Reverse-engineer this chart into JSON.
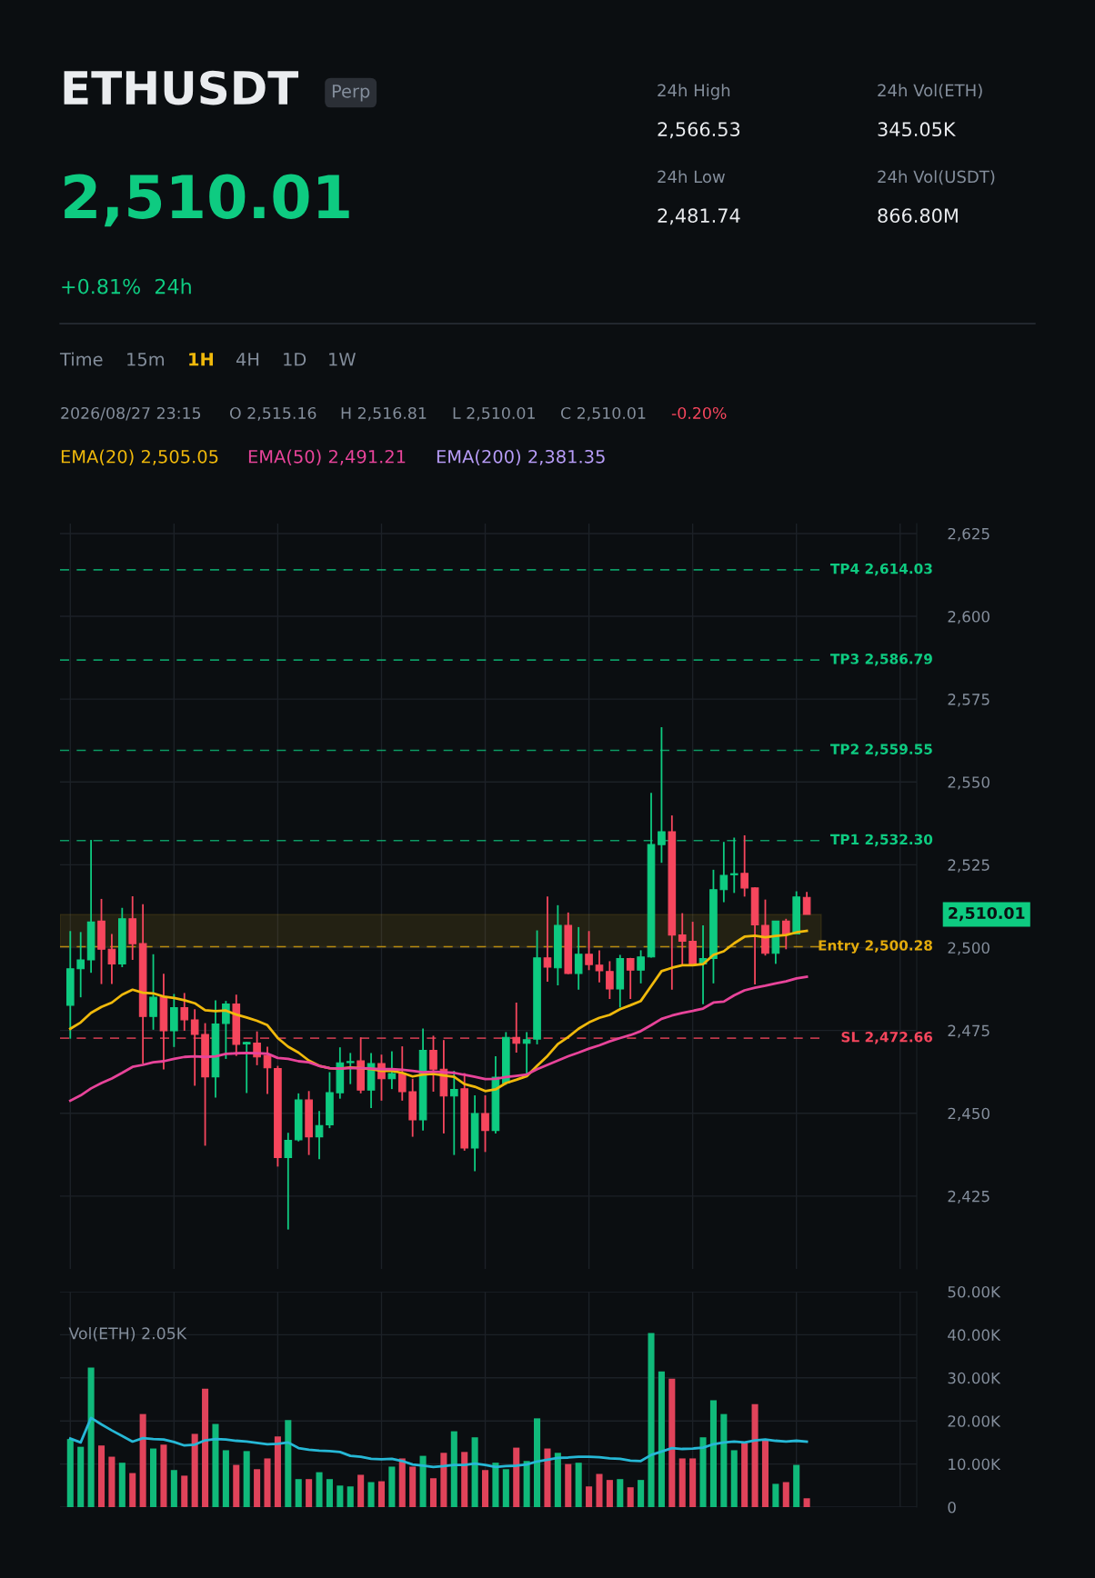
{
  "chart_data": [
    {
      "type": "candlestick",
      "title": "ETHUSDT",
      "subtitle": "2,510.01",
      "annotations": [
        "Perp",
        "+0.81%  24h",
        "24h High",
        "2,566.53",
        "24h Vol(ETH)",
        "345.05K",
        "24h Low",
        "2,481.74",
        "24h Vol(USDT)",
        "866.80M",
        "Time",
        "15m",
        "1H",
        "4H",
        "1D",
        "1W",
        "2026/08/27 23:15",
        "O 2,515.16",
        "H 2,516.81",
        "L 2,510.01",
        "C 2,510.01",
        "-0.20%",
        "EMA(200) 2,381.35",
        "2,510.01"
      ],
      "categories": [
        null,
        null,
        null,
        null,
        null,
        null,
        null,
        null,
        null,
        null,
        null,
        null,
        null,
        null,
        null,
        null,
        null,
        null,
        null,
        null,
        null,
        null,
        null,
        null,
        null,
        null,
        null,
        null,
        null,
        null,
        null,
        null,
        null,
        null,
        null,
        null,
        null,
        null,
        null,
        null,
        null,
        null,
        null,
        null,
        null,
        null,
        null,
        null,
        null,
        null,
        null,
        null,
        null,
        null,
        null,
        null,
        null,
        null,
        null,
        null,
        null,
        null,
        null,
        null,
        null,
        null,
        null,
        null,
        null,
        null,
        null,
        null
      ],
      "ohlc": [
        [
          2482.6,
          2505.0,
          2472.5,
          2493.6
        ],
        [
          2493.6,
          2504.7,
          2485.0,
          2496.3
        ],
        [
          2496.3,
          2532.5,
          2492.4,
          2507.7
        ],
        [
          2508.0,
          2514.7,
          2489.0,
          2499.5
        ],
        [
          2499.5,
          2504.1,
          2489.0,
          2495.1
        ],
        [
          2495.1,
          2512.0,
          2494.1,
          2508.7
        ],
        [
          2508.7,
          2515.5,
          2496.3,
          2501.2
        ],
        [
          2501.2,
          2513.1,
          2464.9,
          2479.2
        ],
        [
          2479.2,
          2498.0,
          2475.2,
          2485.0
        ],
        [
          2485.0,
          2492.1,
          2463.2,
          2474.9
        ],
        [
          2474.9,
          2486.0,
          2470.0,
          2481.9
        ],
        [
          2481.9,
          2486.3,
          2474.9,
          2478.2
        ],
        [
          2478.2,
          2481.4,
          2458.3,
          2473.8
        ],
        [
          2473.8,
          2477.2,
          2440.2,
          2461.0
        ],
        [
          2461.0,
          2484.1,
          2454.7,
          2476.9
        ],
        [
          2477.1,
          2483.9,
          2466.4,
          2483.0
        ],
        [
          2483.0,
          2485.8,
          2467.3,
          2470.8
        ],
        [
          2470.9,
          2471.6,
          2456.1,
          2471.4
        ],
        [
          2471.2,
          2474.7,
          2464.5,
          2467.0
        ],
        [
          2467.5,
          2470.1,
          2455.8,
          2463.7
        ],
        [
          2463.5,
          2464.3,
          2433.9,
          2436.6
        ],
        [
          2436.6,
          2444.1,
          2414.9,
          2441.8
        ],
        [
          2442.0,
          2456.0,
          2441.5,
          2454.0
        ],
        [
          2454.0,
          2456.7,
          2437.4,
          2442.9
        ],
        [
          2442.9,
          2450.7,
          2436.1,
          2446.3
        ],
        [
          2446.5,
          2462.4,
          2445.5,
          2456.2
        ],
        [
          2456.2,
          2469.9,
          2454.4,
          2465.2
        ],
        [
          2465.3,
          2468.2,
          2458.8,
          2465.6
        ],
        [
          2465.8,
          2472.9,
          2456.0,
          2457.0
        ],
        [
          2457.0,
          2468.2,
          2451.6,
          2465.0
        ],
        [
          2465.0,
          2467.7,
          2453.8,
          2460.4
        ],
        [
          2460.4,
          2468.7,
          2457.3,
          2462.0
        ],
        [
          2462.0,
          2470.2,
          2453.8,
          2456.5
        ],
        [
          2456.5,
          2460.4,
          2442.9,
          2448.0
        ],
        [
          2448.0,
          2475.6,
          2444.8,
          2469.0
        ],
        [
          2469.0,
          2473.4,
          2456.5,
          2463.3
        ],
        [
          2463.3,
          2472.1,
          2443.9,
          2455.2
        ],
        [
          2455.2,
          2462.8,
          2437.4,
          2457.2
        ],
        [
          2457.4,
          2462.1,
          2438.7,
          2439.5
        ],
        [
          2439.5,
          2455.4,
          2432.5,
          2449.9
        ],
        [
          2449.9,
          2455.4,
          2438.3,
          2444.8
        ],
        [
          2444.8,
          2467.2,
          2443.9,
          2460.9
        ],
        [
          2459.1,
          2474.5,
          2458.6,
          2472.9
        ],
        [
          2472.9,
          2483.4,
          2468.3,
          2471.1
        ],
        [
          2471.1,
          2474.5,
          2461.7,
          2472.2
        ],
        [
          2472.4,
          2505.2,
          2470.8,
          2496.9
        ],
        [
          2496.9,
          2515.4,
          2489.7,
          2494.1
        ],
        [
          2493.9,
          2512.8,
          2488.6,
          2506.7
        ],
        [
          2506.7,
          2510.6,
          2492.0,
          2492.2
        ],
        [
          2492.2,
          2506.2,
          2487.3,
          2498.0
        ],
        [
          2498.0,
          2505.0,
          2493.2,
          2494.9
        ],
        [
          2494.7,
          2499.2,
          2489.5,
          2493.0
        ],
        [
          2492.8,
          2495.9,
          2484.5,
          2487.5
        ],
        [
          2487.5,
          2497.8,
          2481.9,
          2496.7
        ],
        [
          2496.7,
          2496.9,
          2484.5,
          2493.2
        ],
        [
          2493.2,
          2499.2,
          2489.2,
          2497.2
        ],
        [
          2497.2,
          2546.7,
          2497.0,
          2531.1
        ],
        [
          2531.1,
          2566.53,
          2525.6,
          2535.0
        ],
        [
          2535.0,
          2539.9,
          2487.3,
          2503.8
        ],
        [
          2503.8,
          2510.4,
          2494.6,
          2501.9
        ],
        [
          2501.9,
          2507.8,
          2494.4,
          2495.1
        ],
        [
          2495.1,
          2506.7,
          2482.9,
          2496.7
        ],
        [
          2496.7,
          2523.5,
          2489.2,
          2517.5
        ],
        [
          2517.5,
          2531.9,
          2513.7,
          2521.8
        ],
        [
          2522.0,
          2533.2,
          2516.5,
          2522.3
        ],
        [
          2522.4,
          2533.9,
          2515.4,
          2518.0
        ],
        [
          2518.0,
          2518.2,
          2488.9,
          2506.9
        ],
        [
          2506.7,
          2514.5,
          2497.6,
          2498.3
        ],
        [
          2498.3,
          2508.0,
          2495.1,
          2508.0
        ],
        [
          2508.0,
          2508.7,
          2499.5,
          2504.1
        ],
        [
          2504.1,
          2517.0,
          2504.0,
          2515.3
        ],
        [
          2515.16,
          2516.81,
          2510.01,
          2510.01
        ]
      ],
      "colors": [
        "#0ecb81",
        "#0ecb81",
        "#0ecb81",
        "#f6465d",
        "#f6465d",
        "#0ecb81",
        "#f6465d",
        "#f6465d",
        "#0ecb81",
        "#f6465d",
        "#0ecb81",
        "#f6465d",
        "#f6465d",
        "#f6465d",
        "#0ecb81",
        "#0ecb81",
        "#f6465d",
        "#0ecb81",
        "#f6465d",
        "#f6465d",
        "#f6465d",
        "#0ecb81",
        "#0ecb81",
        "#f6465d",
        "#0ecb81",
        "#0ecb81",
        "#0ecb81",
        "#0ecb81",
        "#f6465d",
        "#0ecb81",
        "#f6465d",
        "#0ecb81",
        "#f6465d",
        "#f6465d",
        "#0ecb81",
        "#f6465d",
        "#f6465d",
        "#0ecb81",
        "#f6465d",
        "#0ecb81",
        "#f6465d",
        "#0ecb81",
        "#0ecb81",
        "#f6465d",
        "#0ecb81",
        "#0ecb81",
        "#f6465d",
        "#0ecb81",
        "#f6465d",
        "#0ecb81",
        "#f6465d",
        "#f6465d",
        "#f6465d",
        "#0ecb81",
        "#f6465d",
        "#0ecb81",
        "#0ecb81",
        "#0ecb81",
        "#f6465d",
        "#f6465d",
        "#f6465d",
        "#0ecb81",
        "#0ecb81",
        "#0ecb81",
        "#0ecb81",
        "#f6465d",
        "#f6465d",
        "#f6465d",
        "#0ecb81",
        "#f6465d",
        "#0ecb81",
        "#f6465d"
      ],
      "series": [
        {
          "type": "line",
          "name": "EMA(20) 2,505.05",
          "color": "#f0b90b",
          "values": [
            2475.5,
            2477.4,
            2480.3,
            2482.1,
            2483.4,
            2485.8,
            2487.3,
            2486.4,
            2486.2,
            2485.2,
            2484.8,
            2484.1,
            2483.2,
            2481.1,
            2480.8,
            2481.0,
            2479.8,
            2478.9,
            2477.9,
            2476.6,
            2472.7,
            2470.1,
            2468.3,
            2465.9,
            2464.3,
            2463.6,
            2463.5,
            2463.8,
            2463.6,
            2463.3,
            2462.8,
            2462.8,
            2462.2,
            2461.1,
            2461.7,
            2461.9,
            2461.4,
            2461.0,
            2458.8,
            2458.0,
            2456.7,
            2457.2,
            2459.1,
            2460.1,
            2461.2,
            2464.3,
            2467.3,
            2470.9,
            2473.0,
            2475.5,
            2477.4,
            2478.8,
            2479.7,
            2481.4,
            2482.6,
            2483.9,
            2488.4,
            2492.9,
            2493.9,
            2494.7,
            2494.7,
            2495.0,
            2497.8,
            2498.9,
            2501.3,
            2503.3,
            2503.6,
            2503.1,
            2503.5,
            2503.8,
            2504.6,
            2505.05
          ]
        },
        {
          "type": "line",
          "name": "EMA(50) 2,491.21",
          "color": "#e8449a",
          "values": [
            2453.8,
            2455.4,
            2457.5,
            2459.1,
            2460.5,
            2462.2,
            2464.0,
            2464.6,
            2465.4,
            2465.7,
            2466.4,
            2467.0,
            2467.2,
            2467.0,
            2467.2,
            2467.9,
            2468.1,
            2468.2,
            2468.1,
            2468.0,
            2466.7,
            2466.4,
            2465.7,
            2465.4,
            2464.3,
            2463.6,
            2463.5,
            2463.7,
            2463.6,
            2463.5,
            2463.3,
            2463.3,
            2463.1,
            2462.8,
            2462.4,
            2462.6,
            2462.4,
            2462.2,
            2461.6,
            2461.0,
            2460.3,
            2460.4,
            2460.9,
            2461.3,
            2461.7,
            2463.3,
            2464.6,
            2465.9,
            2467.2,
            2468.3,
            2469.5,
            2470.5,
            2471.7,
            2472.7,
            2473.6,
            2474.8,
            2476.6,
            2478.5,
            2479.5,
            2480.3,
            2480.9,
            2481.6,
            2483.4,
            2483.7,
            2485.6,
            2487.1,
            2487.9,
            2488.5,
            2489.2,
            2489.8,
            2490.7,
            2491.21
          ]
        }
      ],
      "ylim": [
        2403,
        2628
      ],
      "yticks": [
        {
          "value": 2425,
          "label": "2,425"
        },
        {
          "value": 2450,
          "label": "2,450"
        },
        {
          "value": 2475,
          "label": "2,475"
        },
        {
          "value": 2500,
          "label": "2,500"
        },
        {
          "value": 2525,
          "label": "2,525"
        },
        {
          "value": 2550,
          "label": "2,550"
        },
        {
          "value": 2575,
          "label": "2,575"
        },
        {
          "value": 2600,
          "label": "2,600"
        },
        {
          "value": 2625,
          "label": "2,625"
        }
      ],
      "ref_lines": [
        {
          "axis": "y",
          "value": 2614.03,
          "label": "TP4 2,614.03",
          "color": "#0ecb81",
          "line_style": "dashed"
        },
        {
          "axis": "y",
          "value": 2586.79,
          "label": "TP3 2,586.79",
          "color": "#0ecb81",
          "line_style": "dashed"
        },
        {
          "axis": "y",
          "value": 2559.55,
          "label": "TP2 2,559.55",
          "color": "#0ecb81",
          "line_style": "dashed"
        },
        {
          "axis": "y",
          "value": 2532.3,
          "label": "TP1 2,532.30",
          "color": "#0ecb81",
          "line_style": "dashed"
        },
        {
          "axis": "y",
          "value": 2500.28,
          "label": "Entry 2,500.28",
          "color": "#e3ab0c",
          "line_style": "dashed"
        },
        {
          "axis": "y",
          "value": 2472.66,
          "label": "SL 2,472.66",
          "color": "#f6465d",
          "line_style": "dashed"
        }
      ],
      "bands": [
        {
          "axis": "y",
          "from": 2500.28,
          "to": 2510.01,
          "color": "#c9a227"
        }
      ],
      "grid": true,
      "legend": "top",
      "tick_labels": "y"
    },
    {
      "type": "bar",
      "annotations": [
        "Vol(ETH) 2.05K"
      ],
      "categories": [
        null,
        null,
        null,
        null,
        null,
        null,
        null,
        null,
        null,
        null,
        null,
        null,
        null,
        null,
        null,
        null,
        null,
        null,
        null,
        null,
        null,
        null,
        null,
        null,
        null,
        null,
        null,
        null,
        null,
        null,
        null,
        null,
        null,
        null,
        null,
        null,
        null,
        null,
        null,
        null,
        null,
        null,
        null,
        null,
        null,
        null,
        null,
        null,
        null,
        null,
        null,
        null,
        null,
        null,
        null,
        null,
        null,
        null,
        null,
        null,
        null,
        null,
        null,
        null,
        null,
        null,
        null,
        null,
        null,
        null,
        null,
        null
      ],
      "series": [
        {
          "type": "bar",
          "values": [
            15.8,
            14.0,
            32.4,
            14.3,
            11.7,
            10.3,
            7.9,
            21.6,
            13.6,
            14.5,
            8.6,
            7.3,
            17.0,
            27.5,
            19.3,
            13.2,
            9.8,
            13.0,
            8.8,
            11.3,
            16.4,
            20.2,
            6.5,
            6.5,
            8.1,
            6.5,
            5.0,
            4.8,
            7.5,
            5.8,
            6.0,
            9.4,
            11.3,
            9.4,
            11.9,
            6.7,
            12.6,
            17.6,
            12.8,
            16.2,
            8.6,
            10.3,
            8.8,
            13.8,
            10.7,
            20.6,
            13.6,
            12.6,
            10.0,
            10.3,
            4.8,
            7.7,
            6.3,
            6.5,
            4.6,
            6.3,
            40.4,
            31.5,
            29.8,
            11.3,
            11.3,
            16.2,
            24.8,
            21.6,
            13.2,
            14.9,
            23.9,
            15.5,
            5.4,
            5.8,
            9.8,
            2.05
          ],
          "colors": [
            "#10b97a",
            "#10b97a",
            "#10b97a",
            "#e0435a",
            "#e0435a",
            "#10b97a",
            "#e0435a",
            "#e0435a",
            "#10b97a",
            "#e0435a",
            "#10b97a",
            "#e0435a",
            "#e0435a",
            "#e0435a",
            "#10b97a",
            "#10b97a",
            "#e0435a",
            "#10b97a",
            "#e0435a",
            "#e0435a",
            "#e0435a",
            "#10b97a",
            "#10b97a",
            "#e0435a",
            "#10b97a",
            "#10b97a",
            "#10b97a",
            "#10b97a",
            "#e0435a",
            "#10b97a",
            "#e0435a",
            "#10b97a",
            "#e0435a",
            "#e0435a",
            "#10b97a",
            "#e0435a",
            "#e0435a",
            "#10b97a",
            "#e0435a",
            "#10b97a",
            "#e0435a",
            "#10b97a",
            "#10b97a",
            "#e0435a",
            "#10b97a",
            "#10b97a",
            "#e0435a",
            "#10b97a",
            "#e0435a",
            "#10b97a",
            "#e0435a",
            "#e0435a",
            "#e0435a",
            "#10b97a",
            "#e0435a",
            "#10b97a",
            "#10b97a",
            "#10b97a",
            "#e0435a",
            "#e0435a",
            "#e0435a",
            "#10b97a",
            "#10b97a",
            "#10b97a",
            "#10b97a",
            "#e0435a",
            "#e0435a",
            "#e0435a",
            "#10b97a",
            "#e0435a",
            "#10b97a",
            "#e0435a"
          ]
        },
        {
          "type": "line",
          "color": "#26b8d6",
          "values": [
            15.9,
            15.0,
            20.7,
            19.2,
            17.8,
            16.5,
            15.2,
            16.0,
            15.8,
            15.7,
            15.1,
            14.3,
            14.5,
            15.5,
            15.8,
            15.7,
            15.4,
            15.2,
            14.9,
            14.6,
            14.7,
            15.0,
            13.7,
            13.3,
            13.1,
            13.0,
            12.8,
            11.9,
            11.7,
            11.2,
            11.1,
            11.2,
            10.7,
            9.9,
            9.6,
            9.3,
            9.5,
            9.8,
            9.8,
            10.1,
            9.8,
            9.3,
            9.5,
            9.6,
            9.9,
            10.6,
            11.0,
            11.4,
            11.5,
            11.7,
            11.7,
            11.6,
            11.3,
            11.2,
            10.8,
            10.7,
            12.1,
            12.9,
            13.7,
            13.5,
            13.6,
            13.8,
            14.6,
            15.0,
            15.2,
            15.0,
            15.5,
            15.7,
            15.4,
            15.2,
            15.4,
            15.2
          ]
        }
      ],
      "ylim": [
        0,
        50
      ],
      "yticks": [
        0,
        {
          "value": 10,
          "label": "10.00K"
        },
        {
          "value": 20,
          "label": "20.00K"
        },
        {
          "value": 30,
          "label": "30.00K"
        },
        {
          "value": 40,
          "label": "40.00K"
        },
        {
          "value": 50,
          "label": "50.00K"
        }
      ],
      "grid": true,
      "tick_labels": "y"
    }
  ]
}
